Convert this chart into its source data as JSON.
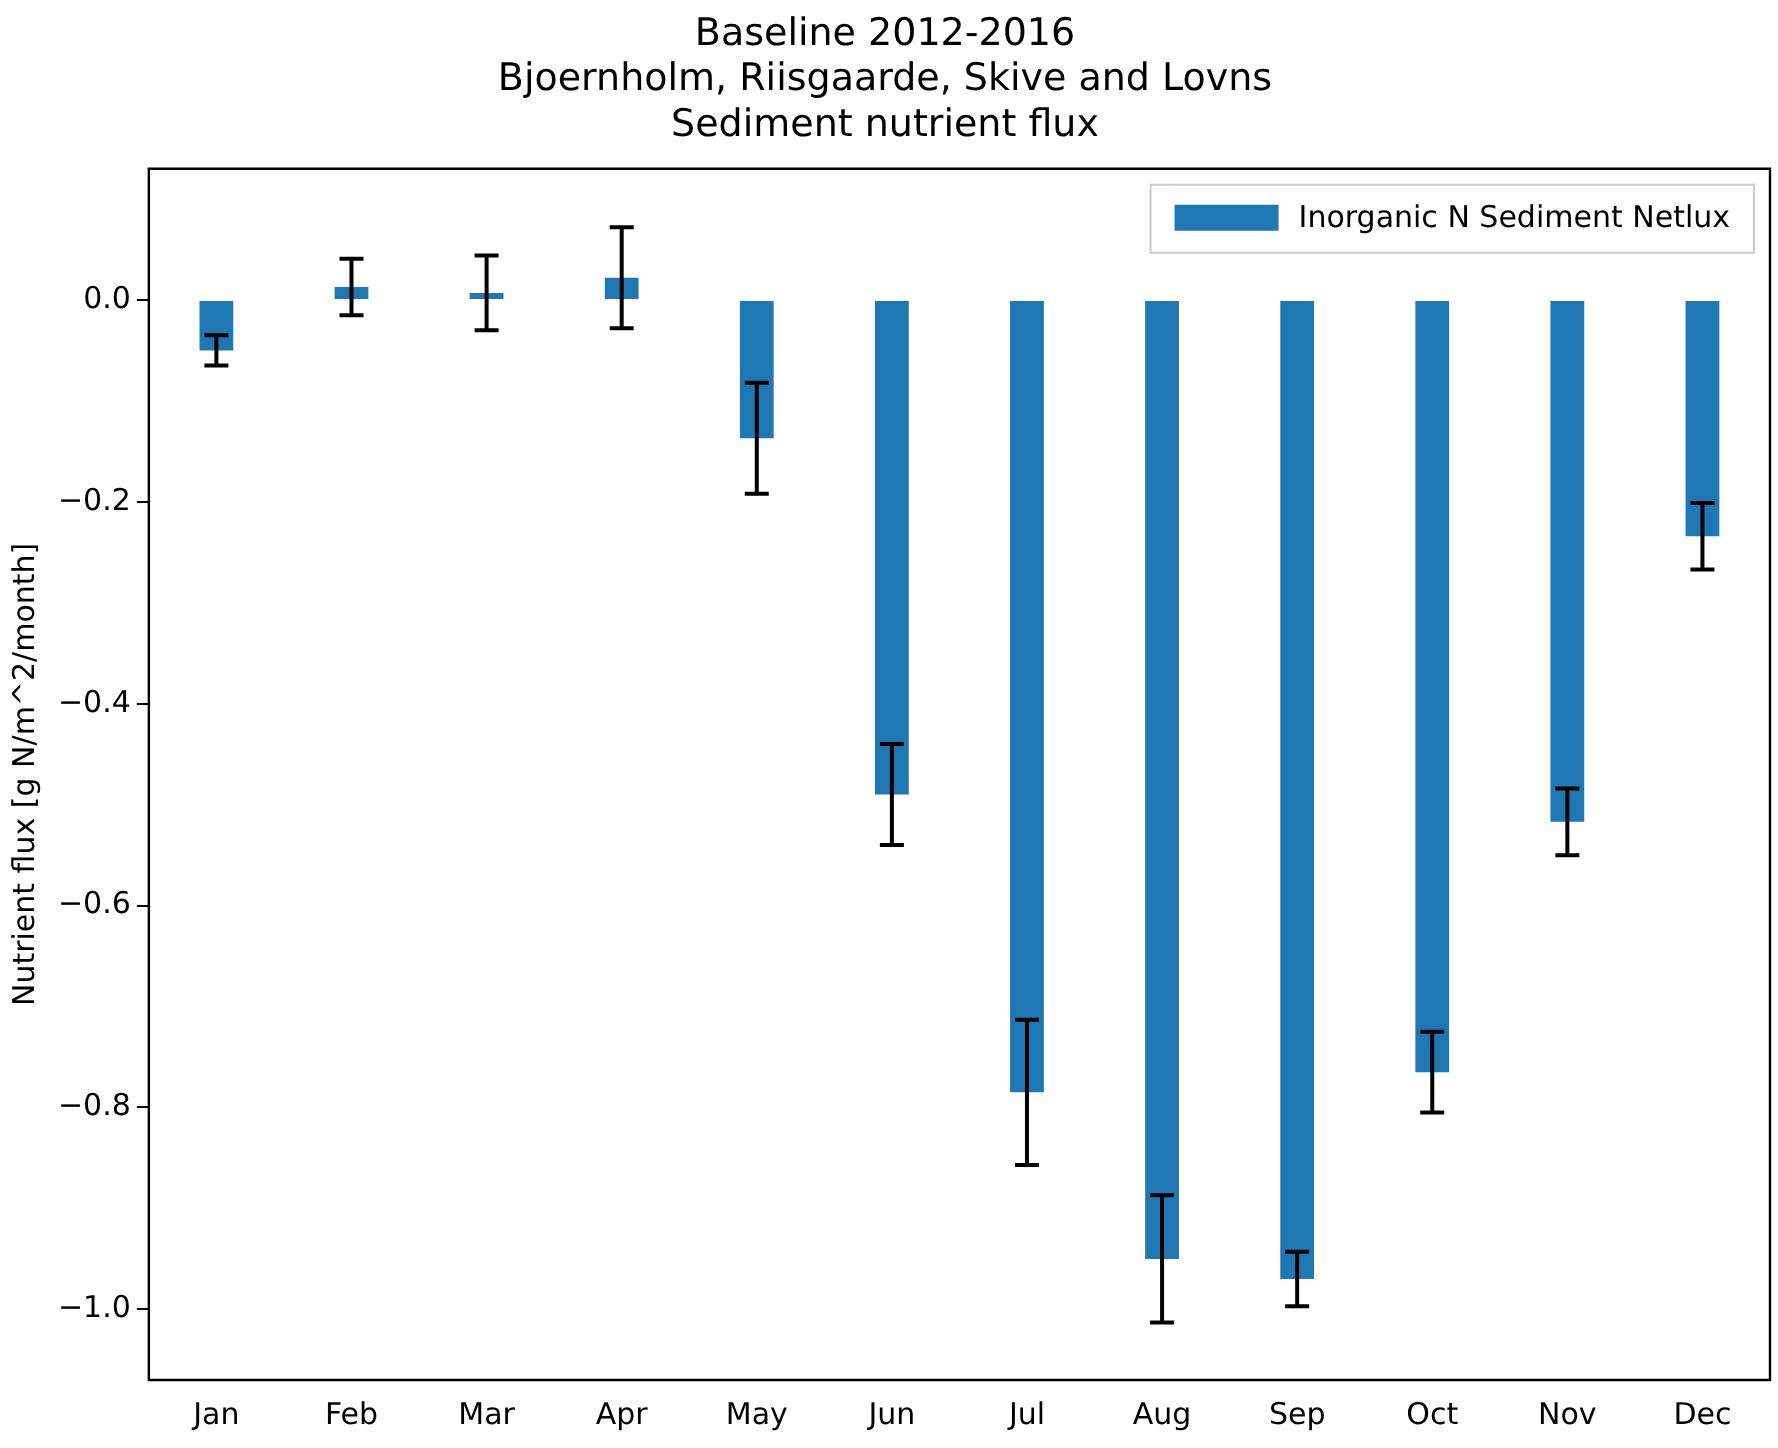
{
  "chart_data": {
    "type": "bar",
    "title": "Baseline 2012-2016\nBjoernholm, Riisgaarde, Skive and Lovns\nSediment nutrient flux",
    "ylabel": "Nutrient flux [g N/m^2/month]",
    "categories": [
      "Jan",
      "Feb",
      "Mar",
      "Apr",
      "May",
      "Jun",
      "Jul",
      "Aug",
      "Sep",
      "Oct",
      "Nov",
      "Dec"
    ],
    "series": [
      {
        "name": "Inorganic N Sediment Netlux",
        "color": "#1f77b4",
        "values": [
          -0.05,
          0.013,
          0.007,
          0.022,
          -0.137,
          -0.49,
          -0.785,
          -0.95,
          -0.97,
          -0.765,
          -0.517,
          -0.234
        ],
        "errors": [
          0.015,
          0.028,
          0.037,
          0.05,
          0.055,
          0.05,
          0.072,
          0.063,
          0.027,
          0.04,
          0.033,
          0.033
        ]
      }
    ],
    "ylim": [
      -1.07,
      0.13
    ],
    "yticks": [
      {
        "value": -1.0,
        "label": "−1.0"
      },
      {
        "value": -0.8,
        "label": "−0.8"
      },
      {
        "value": -0.6,
        "label": "−0.6"
      },
      {
        "value": -0.4,
        "label": "−0.4"
      },
      {
        "value": -0.2,
        "label": "−0.2"
      },
      {
        "value": 0,
        "label": "0.0"
      }
    ],
    "legend": "top right",
    "grid": false
  }
}
